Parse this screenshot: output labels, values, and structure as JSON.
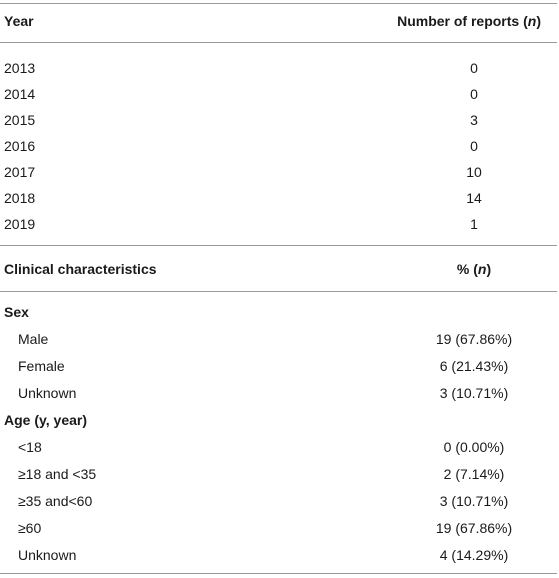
{
  "table1": {
    "header": {
      "col1": "Year",
      "col2_prefix": "Number of reports (",
      "col2_var": "n",
      "col2_suffix": ")"
    },
    "rows": [
      {
        "year": "2013",
        "reports": "0"
      },
      {
        "year": "2014",
        "reports": "0"
      },
      {
        "year": "2015",
        "reports": "3"
      },
      {
        "year": "2016",
        "reports": "0"
      },
      {
        "year": "2017",
        "reports": "10"
      },
      {
        "year": "2018",
        "reports": "14"
      },
      {
        "year": "2019",
        "reports": "1"
      }
    ]
  },
  "table2": {
    "header": {
      "col1": "Clinical characteristics",
      "col2_prefix": "% (",
      "col2_var": "n",
      "col2_suffix": ")"
    },
    "sex": {
      "heading": "Sex",
      "rows": [
        {
          "label": "Male",
          "value": "19 (67.86%)"
        },
        {
          "label": "Female",
          "value": "6 (21.43%)"
        },
        {
          "label": "Unknown",
          "value": "3 (10.71%)"
        }
      ]
    },
    "age": {
      "heading": "Age (y, year)",
      "rows": [
        {
          "label": "<18",
          "value": "0 (0.00%)"
        },
        {
          "label": "≥18 and <35",
          "value": "2 (7.14%)"
        },
        {
          "label": "≥35 and<60",
          "value": "3 (10.71%)"
        },
        {
          "label": "≥60",
          "value": "19 (67.86%)"
        },
        {
          "label": "Unknown",
          "value": "4 (14.29%)"
        }
      ]
    }
  }
}
